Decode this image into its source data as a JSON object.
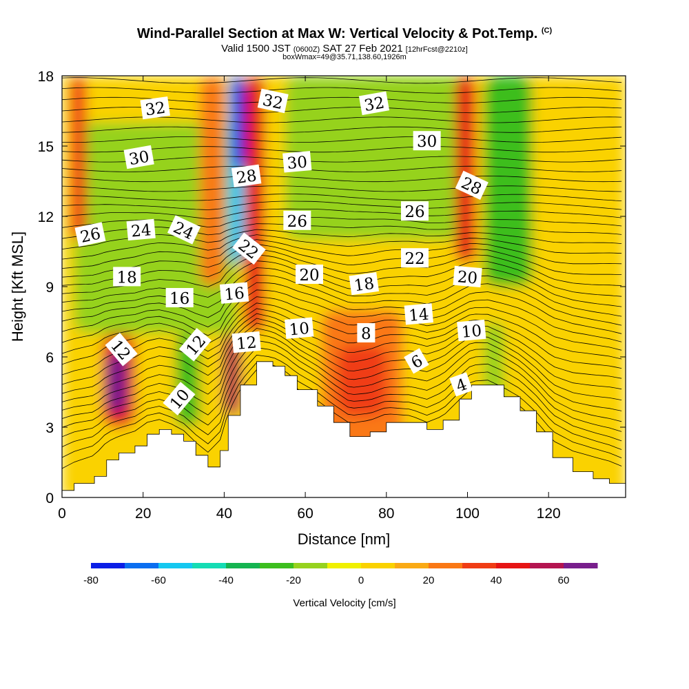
{
  "header": {
    "title": "Wind-Parallel Section at Max W: Vertical Velocity & Pot.Temp.",
    "copyright": "(C)",
    "valid_prefix": "Valid 1500 JST",
    "valid_utc": "(0600Z)",
    "valid_date": "SAT 27 Feb 2021",
    "forecast": "[12hrFcst@2210z]",
    "box_info": "boxWmax=49@35.71,138.60,1926m"
  },
  "chart_data": {
    "type": "heatmap",
    "xlabel": "Distance [nm]",
    "ylabel": "Height [Kft MSL]",
    "xlim": [
      0,
      139
    ],
    "ylim": [
      0,
      18
    ],
    "x_ticks": [
      "0",
      "20",
      "40",
      "60",
      "80",
      "100",
      "120"
    ],
    "y_ticks": [
      "0",
      "3",
      "6",
      "9",
      "12",
      "15",
      "18"
    ],
    "colorbar": {
      "label": "Vertical Velocity [cm/s]",
      "ticks": [
        "-80",
        "-60",
        "-40",
        "-20",
        "0",
        "20",
        "40",
        "60"
      ],
      "bounds": [
        -80,
        70
      ],
      "colors": [
        "#0a1ee6",
        "#0a6ef0",
        "#14c8f0",
        "#14dcb4",
        "#14b450",
        "#3cbe1e",
        "#96d21e",
        "#f0f000",
        "#fad200",
        "#faaa14",
        "#fa7814",
        "#f03c14",
        "#e61414",
        "#b41450",
        "#781e8c"
      ]
    },
    "terrain_profile": [
      [
        0,
        0.3
      ],
      [
        3,
        0.6
      ],
      [
        8,
        0.9
      ],
      [
        11,
        1.6
      ],
      [
        14,
        1.9
      ],
      [
        18,
        2.2
      ],
      [
        21,
        2.7
      ],
      [
        24,
        2.9
      ],
      [
        27,
        2.7
      ],
      [
        30,
        2.4
      ],
      [
        33,
        1.8
      ],
      [
        36,
        1.3
      ],
      [
        39,
        2.0
      ],
      [
        41,
        3.5
      ],
      [
        44,
        4.8
      ],
      [
        48,
        5.8
      ],
      [
        52,
        5.6
      ],
      [
        55,
        5.2
      ],
      [
        58,
        4.6
      ],
      [
        63,
        3.9
      ],
      [
        67,
        3.2
      ],
      [
        71,
        2.6
      ],
      [
        76,
        2.8
      ],
      [
        80,
        3.2
      ],
      [
        86,
        3.2
      ],
      [
        90,
        2.9
      ],
      [
        94,
        3.3
      ],
      [
        98,
        4.2
      ],
      [
        101,
        4.8
      ],
      [
        105,
        4.8
      ],
      [
        109,
        4.3
      ],
      [
        113,
        3.7
      ],
      [
        117,
        2.8
      ],
      [
        121,
        1.7
      ],
      [
        126,
        1.1
      ],
      [
        131,
        0.8
      ],
      [
        135,
        0.6
      ],
      [
        139,
        0.3
      ]
    ],
    "velocity_cells": [
      {
        "x": 0,
        "y": 0,
        "w": 139,
        "h": 18,
        "value": 5
      },
      {
        "x": 3,
        "y": 7,
        "w": 40,
        "h": 9,
        "value": -12
      },
      {
        "x": 55,
        "y": 11,
        "w": 45,
        "h": 7,
        "value": -12
      },
      {
        "x": 104,
        "y": 9,
        "w": 12,
        "h": 9,
        "value": -22
      },
      {
        "x": 64,
        "y": 2,
        "w": 20,
        "h": 6,
        "value": 28
      },
      {
        "x": 68,
        "y": 3.5,
        "w": 12,
        "h": 3,
        "value": 38
      },
      {
        "x": 10,
        "y": 3,
        "w": 8,
        "h": 4,
        "value": 48
      },
      {
        "x": 11,
        "y": 3.6,
        "w": 5,
        "h": 2.6,
        "value": 62
      },
      {
        "x": 34,
        "y": 9,
        "w": 6,
        "h": 9,
        "value": 28
      },
      {
        "x": 40,
        "y": 3.5,
        "w": 4,
        "h": 3.5,
        "value": 55
      },
      {
        "x": 45,
        "y": 7,
        "w": 5,
        "h": 11,
        "value": 45
      },
      {
        "x": 41,
        "y": 10,
        "w": 4,
        "h": 8,
        "value": -55
      },
      {
        "x": 42,
        "y": 14,
        "w": 3,
        "h": 4,
        "value": -75
      },
      {
        "x": 97,
        "y": 10,
        "w": 5,
        "h": 8,
        "value": 45
      },
      {
        "x": 2,
        "y": 11,
        "w": 4,
        "h": 7,
        "value": 38
      },
      {
        "x": 28,
        "y": 3,
        "w": 6,
        "h": 4,
        "value": -30
      },
      {
        "x": 104,
        "y": 3.5,
        "w": 5,
        "h": 4,
        "value": -18
      }
    ],
    "contour_labels": [
      {
        "text": "32",
        "x": 23,
        "y": 16.6,
        "rotation": -8
      },
      {
        "text": "32",
        "x": 52,
        "y": 16.9,
        "rotation": 12
      },
      {
        "text": "32",
        "x": 77,
        "y": 16.8,
        "rotation": -10
      },
      {
        "text": "30",
        "x": 19,
        "y": 14.5,
        "rotation": -10
      },
      {
        "text": "30",
        "x": 58,
        "y": 14.3,
        "rotation": -5
      },
      {
        "text": "30",
        "x": 90,
        "y": 15.2,
        "rotation": 0
      },
      {
        "text": "28",
        "x": 45.5,
        "y": 13.7,
        "rotation": -8
      },
      {
        "text": "28",
        "x": 101,
        "y": 13.3,
        "rotation": 25
      },
      {
        "text": "26",
        "x": 7,
        "y": 11.2,
        "rotation": -12
      },
      {
        "text": "26",
        "x": 58,
        "y": 11.8,
        "rotation": 0
      },
      {
        "text": "26",
        "x": 87,
        "y": 12.2,
        "rotation": 0
      },
      {
        "text": "24",
        "x": 19.5,
        "y": 11.4,
        "rotation": -5
      },
      {
        "text": "24",
        "x": 30,
        "y": 11.4,
        "rotation": 25
      },
      {
        "text": "22",
        "x": 46,
        "y": 10.6,
        "rotation": 38
      },
      {
        "text": "22",
        "x": 87,
        "y": 10.2,
        "rotation": 0
      },
      {
        "text": "20",
        "x": 61,
        "y": 9.5,
        "rotation": 0
      },
      {
        "text": "20",
        "x": 100,
        "y": 9.4,
        "rotation": 5
      },
      {
        "text": "18",
        "x": 16,
        "y": 9.4,
        "rotation": 0
      },
      {
        "text": "18",
        "x": 74.5,
        "y": 9.1,
        "rotation": -8
      },
      {
        "text": "16",
        "x": 29,
        "y": 8.5,
        "rotation": 0
      },
      {
        "text": "16",
        "x": 42.5,
        "y": 8.7,
        "rotation": -5
      },
      {
        "text": "14",
        "x": 88,
        "y": 7.8,
        "rotation": -5
      },
      {
        "text": "12",
        "x": 14.5,
        "y": 6.3,
        "rotation": 50
      },
      {
        "text": "12",
        "x": 33,
        "y": 6.5,
        "rotation": -50
      },
      {
        "text": "12",
        "x": 45.5,
        "y": 6.6,
        "rotation": -5
      },
      {
        "text": "10",
        "x": 58.5,
        "y": 7.2,
        "rotation": -5
      },
      {
        "text": "10",
        "x": 101,
        "y": 7.1,
        "rotation": -5
      },
      {
        "text": "10",
        "x": 29,
        "y": 4.2,
        "rotation": -50
      },
      {
        "text": "8",
        "x": 75,
        "y": 7.0,
        "rotation": 0
      },
      {
        "text": "6",
        "x": 87.5,
        "y": 5.8,
        "rotation": -30
      },
      {
        "text": "4",
        "x": 98.5,
        "y": 4.8,
        "rotation": -20
      }
    ]
  }
}
